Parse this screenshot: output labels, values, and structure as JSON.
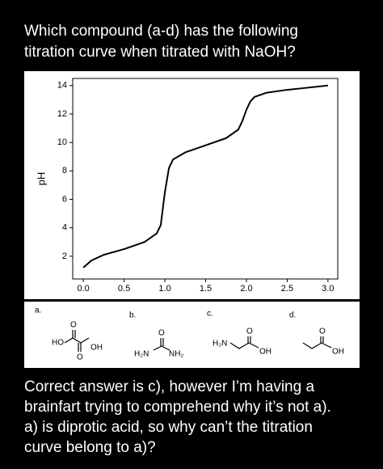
{
  "question": [
    "Which compound (a-d) has the following",
    "titration curve when titrated with NaOH?"
  ],
  "chart_data": {
    "type": "line",
    "y_label": "pH",
    "x": [
      0,
      0.1,
      0.25,
      0.5,
      0.75,
      0.9,
      0.95,
      1.0,
      1.05,
      1.1,
      1.25,
      1.5,
      1.75,
      1.9,
      1.95,
      2.0,
      2.05,
      2.1,
      2.25,
      2.5,
      2.75,
      3.0
    ],
    "series": [
      {
        "color": "#000000",
        "values": [
          1.2,
          1.7,
          2.1,
          2.5,
          3.0,
          3.6,
          4.2,
          6.5,
          8.2,
          8.8,
          9.3,
          9.8,
          10.3,
          10.9,
          11.5,
          12.3,
          12.9,
          13.2,
          13.5,
          13.7,
          13.85,
          14.0
        ]
      }
    ],
    "xlim": [
      -0.13,
      3.12
    ],
    "ylim": [
      0.4,
      14.5
    ],
    "xticks": [
      {
        "value": 0,
        "label": "0.0"
      },
      0.5,
      {
        "value": 1,
        "label": "1.0"
      },
      1.5,
      {
        "value": 2,
        "label": "2.0"
      },
      2.5,
      {
        "value": 3,
        "label": "3.0"
      }
    ],
    "yticks": [
      2,
      4,
      6,
      8,
      10,
      12,
      14
    ],
    "grid": false
  },
  "options": [
    {
      "label": "a.",
      "atoms": [
        "HO",
        "O",
        "O",
        "OH"
      ]
    },
    {
      "label": "b.",
      "atoms": [
        "O",
        "H₂N",
        "NH₂"
      ]
    },
    {
      "label": "c.",
      "atoms": [
        "H₂N",
        "O",
        "OH"
      ]
    },
    {
      "label": "d.",
      "atoms": [
        "O",
        "OH"
      ]
    }
  ],
  "comment": [
    "Correct answer is c), however I’m having a",
    "brainfart trying to comprehend why it’s not a).",
    "a) is diprotic acid, so why can’t the titration",
    "curve belong to a)?"
  ]
}
